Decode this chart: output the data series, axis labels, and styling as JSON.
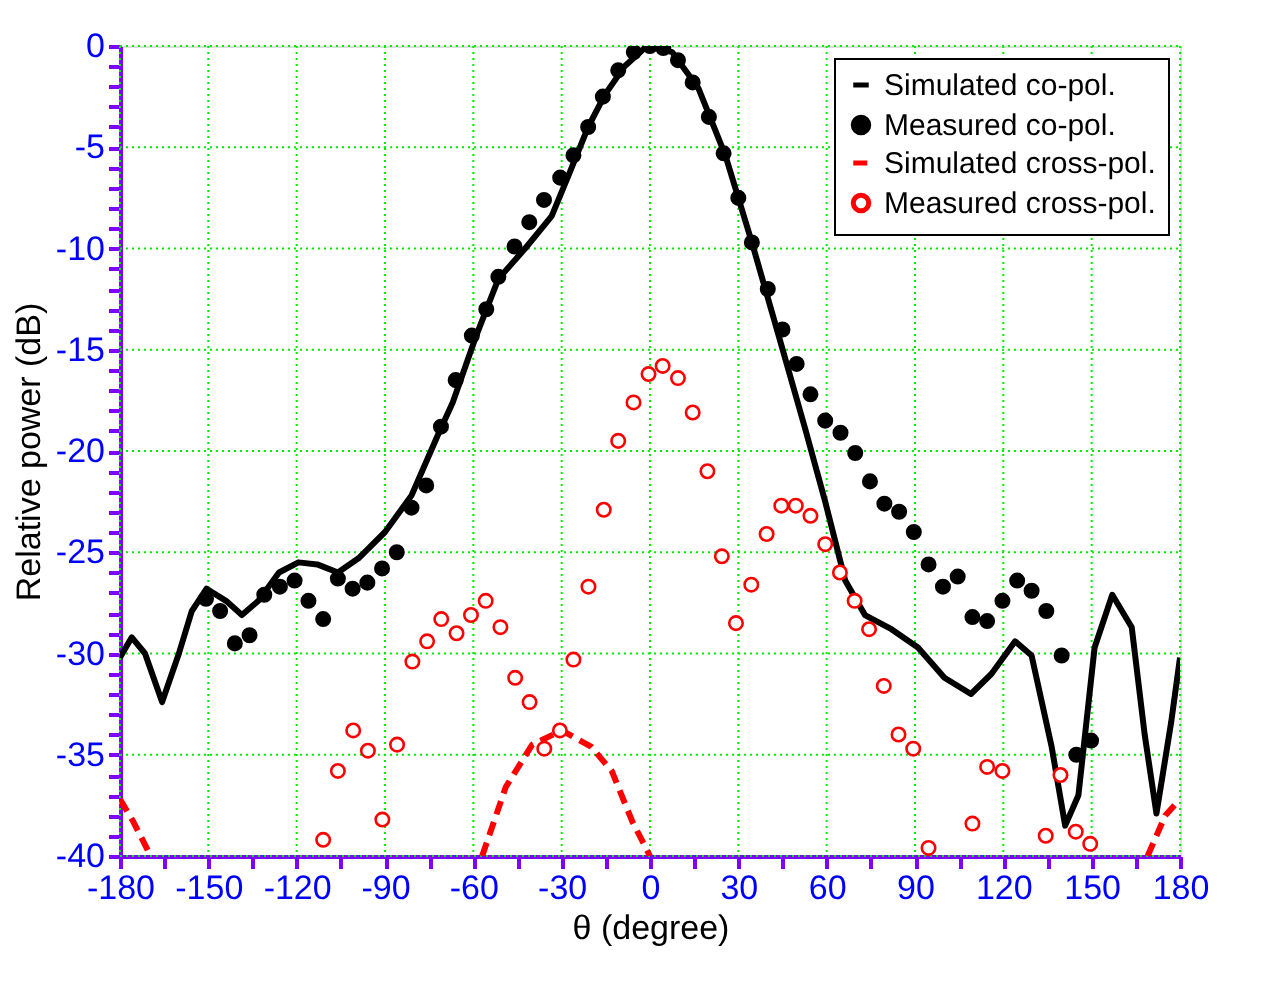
{
  "chart_data": {
    "type": "line",
    "xlabel": "θ (degree)",
    "ylabel": "Relative power (dB)",
    "xlim": [
      -180,
      180
    ],
    "ylim": [
      -40,
      0
    ],
    "xticks": [
      -180,
      {
        "value": -165,
        "label": null
      },
      -150,
      {
        "value": -135,
        "label": null
      },
      -120,
      {
        "value": -105,
        "label": null
      },
      -90,
      {
        "value": -75,
        "label": null
      },
      -60,
      {
        "value": -45,
        "label": null
      },
      -30,
      {
        "value": -15,
        "label": null
      },
      0,
      {
        "value": 15,
        "label": null
      },
      30,
      {
        "value": 45,
        "label": null
      },
      60,
      {
        "value": 75,
        "label": null
      },
      90,
      {
        "value": 105,
        "label": null
      },
      120,
      {
        "value": 135,
        "label": null
      },
      150,
      {
        "value": 165,
        "label": null
      },
      180
    ],
    "yticks": [
      0,
      {
        "value": -1,
        "label": null
      },
      {
        "value": -2,
        "label": null
      },
      {
        "value": -3,
        "label": null
      },
      {
        "value": -4,
        "label": null
      },
      -5,
      {
        "value": -6,
        "label": null
      },
      {
        "value": -7,
        "label": null
      },
      {
        "value": -8,
        "label": null
      },
      {
        "value": -9,
        "label": null
      },
      -10,
      {
        "value": -11,
        "label": null
      },
      {
        "value": -12,
        "label": null
      },
      {
        "value": -13,
        "label": null
      },
      {
        "value": -14,
        "label": null
      },
      -15,
      {
        "value": -16,
        "label": null
      },
      {
        "value": -17,
        "label": null
      },
      {
        "value": -18,
        "label": null
      },
      {
        "value": -19,
        "label": null
      },
      -20,
      {
        "value": -21,
        "label": null
      },
      {
        "value": -22,
        "label": null
      },
      {
        "value": -23,
        "label": null
      },
      {
        "value": -24,
        "label": null
      },
      -25,
      {
        "value": -26,
        "label": null
      },
      {
        "value": -27,
        "label": null
      },
      {
        "value": -28,
        "label": null
      },
      {
        "value": -29,
        "label": null
      },
      -30,
      {
        "value": -31,
        "label": null
      },
      {
        "value": -32,
        "label": null
      },
      {
        "value": -33,
        "label": null
      },
      {
        "value": -34,
        "label": null
      },
      -35,
      {
        "value": -36,
        "label": null
      },
      {
        "value": -37,
        "label": null
      },
      {
        "value": -38,
        "label": null
      },
      {
        "value": -39,
        "label": null
      },
      -40
    ],
    "grid": true,
    "legend": "top right",
    "series": [
      {
        "name": "Simulated co-pol.",
        "line_style": "solid",
        "marker": "none",
        "color": "#000000",
        "x": [
          -180,
          -176,
          -171.5,
          -165.7,
          -160,
          -155.6,
          -150.6,
          -144,
          -138.6,
          -133,
          -126,
          -119.4,
          -113,
          -106,
          -99,
          -90,
          -81,
          -72,
          -67,
          -59,
          -51.5,
          -42.4,
          -33.4,
          -27.7,
          -21,
          -15.3,
          -8.6,
          -1.8,
          0,
          7.5,
          16.5,
          25.6,
          34.6,
          43.7,
          52.7,
          59.5,
          66.3,
          73,
          82,
          91,
          100,
          109,
          116,
          124,
          129.6,
          136.4,
          141,
          145.5,
          151,
          157,
          163.6,
          168,
          172,
          177,
          180
        ],
        "values": [
          -30.2,
          -29.2,
          -30,
          -32.4,
          -30,
          -27.9,
          -26.8,
          -27.4,
          -28.1,
          -27.4,
          -26,
          -25.5,
          -25.6,
          -26,
          -25.3,
          -24,
          -22.2,
          -19.2,
          -17.6,
          -14.3,
          -11.5,
          -10,
          -8.4,
          -6.4,
          -4,
          -2.4,
          -1,
          -0.1,
          0,
          -0.3,
          -2.1,
          -5.4,
          -9.7,
          -14.3,
          -18.9,
          -22.5,
          -26.4,
          -28.1,
          -28.8,
          -29.7,
          -31.2,
          -32,
          -31,
          -29.4,
          -30.1,
          -34.6,
          -38.5,
          -37,
          -29.7,
          -27.1,
          -28.7,
          -34,
          -37.9,
          -33.4,
          -30.2
        ]
      },
      {
        "name": "Measured co-pol.",
        "type": "scatter",
        "marker": "circle",
        "color": "#000000",
        "x": [
          -150.8,
          -146,
          -141,
          -136,
          -131,
          -125.7,
          -120.7,
          -116,
          -111,
          -106,
          -101,
          -96,
          -91,
          -86,
          -81,
          -76,
          -71,
          -66,
          -60.5,
          -55.6,
          -51.5,
          -46,
          -41,
          -36,
          -30.5,
          -26,
          -21,
          -16,
          -10.8,
          -5.5,
          0,
          4.5,
          9.5,
          14.5,
          20,
          25,
          30,
          34.6,
          40,
          45,
          49.8,
          54.5,
          59.5,
          64.7,
          69.7,
          74.7,
          79.6,
          84.6,
          89.6,
          94.6,
          99.5,
          104.5,
          109.5,
          114.5,
          119.7,
          124.7,
          129.6,
          134.6,
          139.8,
          144.8,
          149.8
        ],
        "values": [
          -27.3,
          -27.9,
          -29.5,
          -29.1,
          -27.1,
          -26.7,
          -26.4,
          -27.4,
          -28.3,
          -26.3,
          -26.8,
          -26.5,
          -25.8,
          -25,
          -22.8,
          -21.7,
          -18.8,
          -16.5,
          -14.3,
          -13,
          -11.4,
          -9.9,
          -8.7,
          -7.6,
          -6.5,
          -5.4,
          -4,
          -2.5,
          -1.2,
          -0.3,
          0,
          -0.1,
          -0.7,
          -1.8,
          -3.5,
          -5.3,
          -7.5,
          -9.7,
          -12,
          -14,
          -15.7,
          -17.2,
          -18.5,
          -19.1,
          -20.1,
          -21.5,
          -22.6,
          -23,
          -24,
          -25.6,
          -26.7,
          -26.2,
          -28.2,
          -28.4,
          -27.4,
          -26.4,
          -26.9,
          -27.9,
          -30.1,
          -35,
          -34.3
        ]
      },
      {
        "name": "Simulated cross-pol.",
        "line_style": "dashed",
        "marker": "none",
        "color": "#ff0000",
        "x": [
          -180,
          -175.5,
          -169.6,
          null,
          -57,
          -49,
          -40,
          -30,
          -20,
          -13,
          -6,
          0,
          null,
          169,
          175,
          180
        ],
        "values": [
          -37.2,
          -38.3,
          -40,
          null,
          -40,
          -36.6,
          -34.5,
          -33.8,
          -34.6,
          -35.8,
          -38.3,
          -40,
          null,
          -40,
          -38,
          -37.2
        ]
      },
      {
        "name": "Measured cross-pol.",
        "type": "scatter",
        "marker": "circle",
        "color": "#ff0000",
        "x": [
          -111,
          -106,
          -100.8,
          -95.8,
          -90.9,
          -85.9,
          -80.7,
          -75.7,
          -70.9,
          -65.7,
          -60.8,
          -55.8,
          -50.8,
          -45.8,
          -40.9,
          -35.9,
          -30.6,
          -26,
          -20.9,
          -15.7,
          -10.8,
          -5.6,
          -0.5,
          4.3,
          9.5,
          14.5,
          19.5,
          24.4,
          29.2,
          34.4,
          39.6,
          44.6,
          49.5,
          54.5,
          59.5,
          64.5,
          69.5,
          74.4,
          79.4,
          84.4,
          89.4,
          94.6,
          109.5,
          114.5,
          119.7,
          134.4,
          139.4,
          144.6,
          149.5
        ],
        "values": [
          -39.2,
          -35.8,
          -33.8,
          -34.8,
          -38.2,
          -34.5,
          -30.4,
          -29.4,
          -28.3,
          -29,
          -28.1,
          -27.4,
          -28.7,
          -31.2,
          -32.4,
          -34.7,
          -33.8,
          -30.3,
          -26.7,
          -22.9,
          -19.5,
          -17.6,
          -16.2,
          -15.8,
          -16.4,
          -18.1,
          -21,
          -25.2,
          -28.5,
          -26.6,
          -24.1,
          -22.7,
          -22.7,
          -23.2,
          -24.6,
          -26,
          -27.4,
          -28.8,
          -31.6,
          -34,
          -34.7,
          -39.6,
          -38.4,
          -35.6,
          -35.8,
          -39,
          -36,
          -38.8,
          -39.4
        ]
      }
    ]
  }
}
